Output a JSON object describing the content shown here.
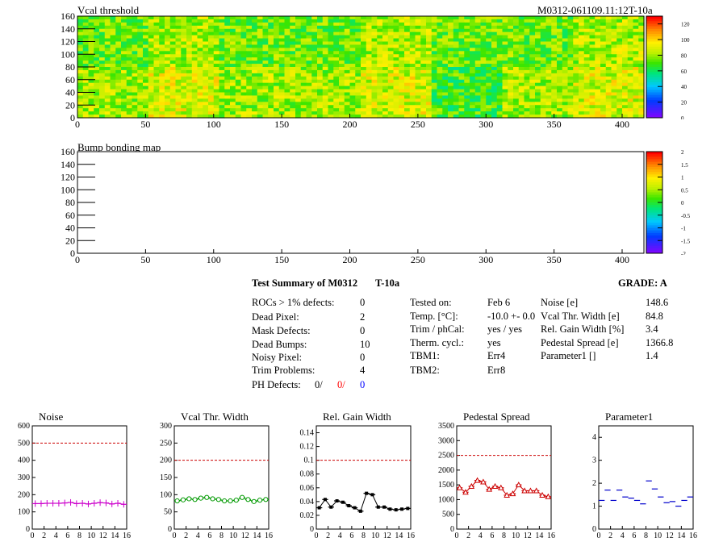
{
  "maps": {
    "threshold_title": "Vcal threshold",
    "module_label": "M0312-061109.11:12T-10a",
    "bump_title": "Bump bonding map",
    "threshold_scale_labels": [
      "0",
      "20",
      "40",
      "60",
      "80",
      "100",
      "120"
    ],
    "bump_scale_labels": [
      "-2",
      "-1.5",
      "-1",
      "-0.5",
      "0",
      "0.5",
      "1",
      "1.5",
      "2"
    ]
  },
  "summary": {
    "title": "Test Summary of M0312",
    "temp_tag": "T-10a",
    "grade": "GRADE:  A",
    "left": [
      {
        "label": "ROCs > 1% defects:",
        "value": "0"
      },
      {
        "label": "Dead Pixel:",
        "value": "2"
      },
      {
        "label": "Mask Defects:",
        "value": "0"
      },
      {
        "label": "Dead Bumps:",
        "value": "10"
      },
      {
        "label": "Noisy Pixel:",
        "value": "0"
      },
      {
        "label": "Trim Problems:",
        "value": "4"
      }
    ],
    "ph_label": "PH Defects:",
    "ph_values": [
      "0/",
      "0/",
      "0"
    ],
    "middle": [
      {
        "label": "Tested on:",
        "value": "Feb 6"
      },
      {
        "label": "Temp. [°C]:",
        "value": "-10.0 +- 0.0"
      },
      {
        "label": "Trim / phCal:",
        "value": "yes / yes"
      },
      {
        "label": "Therm. cycl.:",
        "value": "yes"
      },
      {
        "label": "TBM1:",
        "value": "Err4"
      },
      {
        "label": "TBM2:",
        "value": "Err8"
      }
    ],
    "right": [
      {
        "label": "Noise [e]",
        "value": "148.6"
      },
      {
        "label": "Vcal Thr. Width [e]",
        "value": "84.8"
      },
      {
        "label": "Rel. Gain Width [%]",
        "value": "3.4"
      },
      {
        "label": "Pedestal Spread [e]",
        "value": "1366.8"
      },
      {
        "label": "Parameter1 []",
        "value": "1.4"
      }
    ]
  },
  "colors": {
    "noise": "#cc00cc",
    "vcal": "#009900",
    "gain": "#000000",
    "pedestal": "#cc0000",
    "param": "#0000cc",
    "limit": "#cc0000",
    "ph_red": "#ff0000",
    "ph_blue": "#0000ff"
  },
  "chart_data": [
    {
      "type": "heatmap",
      "title": "Vcal threshold",
      "x_ticks": [
        "0",
        "50",
        "100",
        "150",
        "200",
        "250",
        "300",
        "350",
        "400"
      ],
      "y_ticks": [
        "0",
        "20",
        "40",
        "60",
        "80",
        "100",
        "120",
        "140",
        "160"
      ],
      "xlim": [
        0,
        416
      ],
      "ylim": [
        0,
        160
      ],
      "zlim": [
        0,
        130
      ],
      "typical_value": 78
    },
    {
      "type": "heatmap",
      "title": "Bump bonding map",
      "x_ticks": [
        "0",
        "50",
        "100",
        "150",
        "200",
        "250",
        "300",
        "350",
        "400"
      ],
      "y_ticks": [
        "0",
        "20",
        "40",
        "60",
        "80",
        "100",
        "120",
        "140",
        "160"
      ],
      "xlim": [
        0,
        416
      ],
      "ylim": [
        0,
        160
      ],
      "zlim": [
        -2,
        2
      ]
    },
    {
      "type": "line",
      "title": "Noise",
      "x": [
        0,
        1,
        2,
        3,
        4,
        5,
        6,
        7,
        8,
        9,
        10,
        11,
        12,
        13,
        14,
        15
      ],
      "values": [
        148,
        148,
        150,
        150,
        150,
        152,
        155,
        148,
        150,
        146,
        150,
        154,
        152,
        146,
        150,
        144
      ],
      "ylim": [
        0,
        600
      ],
      "y_ticks": [
        "0",
        "100",
        "200",
        "300",
        "400",
        "500",
        "600"
      ],
      "x_ticks": [
        "0",
        "2",
        "4",
        "6",
        "8",
        "10",
        "12",
        "14",
        "16"
      ],
      "limit": 500
    },
    {
      "type": "line",
      "title": "Vcal Thr. Width",
      "x": [
        0,
        1,
        2,
        3,
        4,
        5,
        6,
        7,
        8,
        9,
        10,
        11,
        12,
        13,
        14,
        15
      ],
      "values": [
        82,
        85,
        88,
        86,
        90,
        92,
        88,
        86,
        82,
        82,
        84,
        92,
        86,
        80,
        84,
        86
      ],
      "ylim": [
        0,
        300
      ],
      "y_ticks": [
        "0",
        "50",
        "100",
        "150",
        "200",
        "250",
        "300"
      ],
      "x_ticks": [
        "0",
        "2",
        "4",
        "6",
        "8",
        "10",
        "12",
        "14",
        "16"
      ],
      "limit": 200
    },
    {
      "type": "line",
      "title": "Rel. Gain Width",
      "x": [
        0,
        1,
        2,
        3,
        4,
        5,
        6,
        7,
        8,
        9,
        10,
        11,
        12,
        13,
        14,
        15
      ],
      "values": [
        0.031,
        0.043,
        0.032,
        0.041,
        0.039,
        0.034,
        0.031,
        0.026,
        0.052,
        0.05,
        0.032,
        0.032,
        0.029,
        0.028,
        0.029,
        0.03
      ],
      "ylim": [
        0,
        0.15
      ],
      "y_ticks": [
        "0",
        "0.02",
        "0.04",
        "0.06",
        "0.08",
        "0.1",
        "0.12",
        "0.14"
      ],
      "x_ticks": [
        "0",
        "2",
        "4",
        "6",
        "8",
        "10",
        "12",
        "14",
        "16"
      ],
      "limit": 0.1
    },
    {
      "type": "line",
      "title": "Pedestal Spread",
      "x": [
        0,
        1,
        2,
        3,
        4,
        5,
        6,
        7,
        8,
        9,
        10,
        11,
        12,
        13,
        14,
        15
      ],
      "values": [
        1400,
        1250,
        1450,
        1650,
        1600,
        1350,
        1450,
        1400,
        1150,
        1200,
        1500,
        1300,
        1300,
        1300,
        1150,
        1100
      ],
      "ylim": [
        0,
        3500
      ],
      "y_ticks": [
        "0",
        "500",
        "1000",
        "1500",
        "2000",
        "2500",
        "3000",
        "3500"
      ],
      "x_ticks": [
        "0",
        "2",
        "4",
        "6",
        "8",
        "10",
        "12",
        "14",
        "16"
      ],
      "limit": 2500
    },
    {
      "type": "scatter",
      "title": "Parameter1",
      "x": [
        0,
        1,
        2,
        3,
        4,
        5,
        6,
        7,
        8,
        9,
        10,
        11,
        12,
        13,
        14,
        15
      ],
      "values": [
        1.25,
        1.7,
        1.25,
        1.7,
        1.4,
        1.35,
        1.25,
        1.1,
        2.1,
        1.75,
        1.4,
        1.15,
        1.2,
        1.0,
        1.25,
        1.4
      ],
      "ylim": [
        0,
        4.5
      ],
      "y_ticks": [
        "0",
        "1",
        "2",
        "3",
        "4"
      ],
      "x_ticks": [
        "0",
        "2",
        "4",
        "6",
        "8",
        "10",
        "12",
        "14",
        "16"
      ]
    }
  ]
}
